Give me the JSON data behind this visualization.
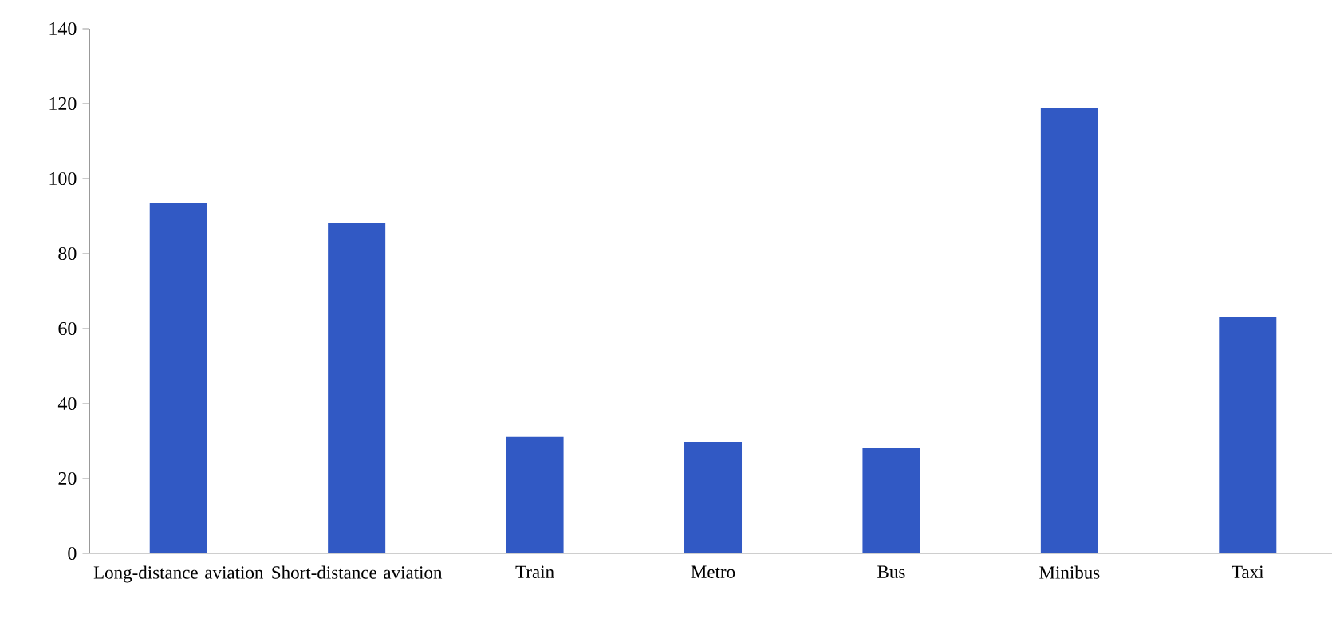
{
  "chart_data": {
    "type": "bar",
    "categories": [
      "Long-distance aviation",
      "Short-distance aviation",
      "Train",
      "Metro",
      "Bus",
      "Minibus",
      "Taxi"
    ],
    "values": [
      93.6,
      88.1,
      31.1,
      29.8,
      28.1,
      118.7,
      63.0
    ],
    "color": "#3159c4",
    "ylim": [
      0,
      140
    ],
    "yticks": [
      0,
      20,
      40,
      60,
      80,
      100,
      120,
      140
    ],
    "grid": false
  }
}
